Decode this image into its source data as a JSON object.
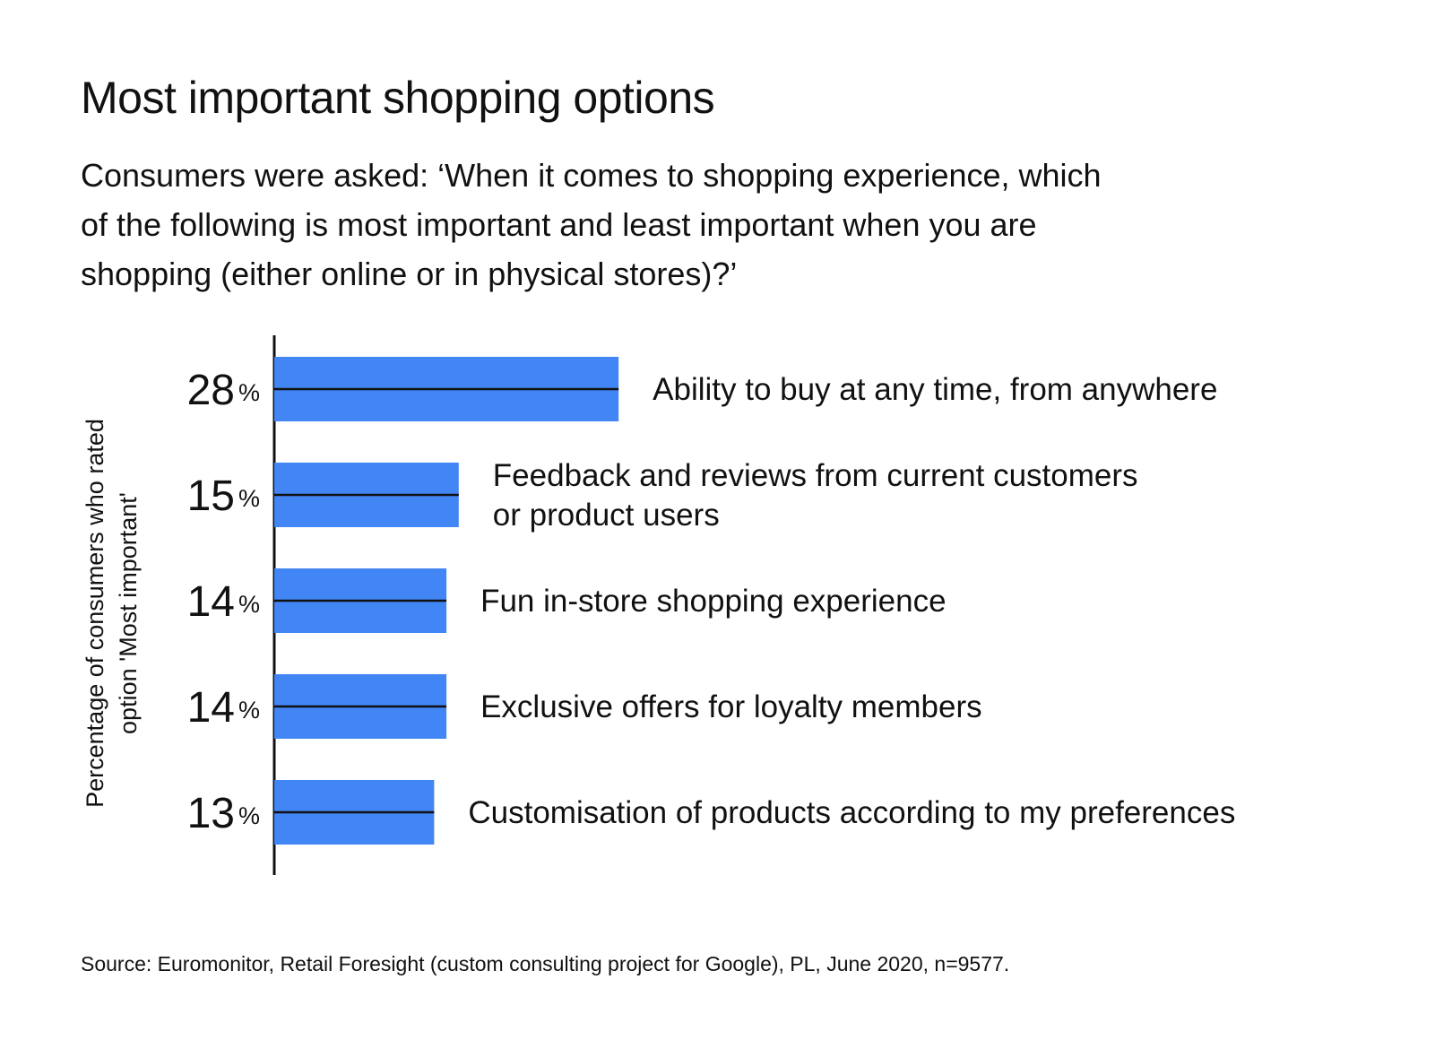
{
  "title": "Most important shopping options",
  "subtitle": "Consumers were asked: ‘When it comes to shopping experience, which\nof the following is most important and least important when you are\nshopping (either online or in physical stores)?’",
  "source": "Source: Euromonitor, Retail Foresight (custom consulting project for Google), PL, June 2020, n=9577.",
  "chart_data": {
    "type": "bar",
    "orientation": "horizontal",
    "ylabel": "Percentage of consumers who rated\noption 'Most important'",
    "unit": "%",
    "categories": [
      "Ability to buy at any time, from anywhere",
      "Feedback and reviews from current customers\nor product users",
      "Fun in-store shopping experience",
      "Exclusive offers for loyalty members",
      "Customisation of products according to my preferences"
    ],
    "values": [
      28,
      15,
      14,
      14,
      13
    ],
    "xlim": [
      0,
      100
    ],
    "grid": false,
    "legend": "none",
    "bar_color": "#4285f4"
  }
}
